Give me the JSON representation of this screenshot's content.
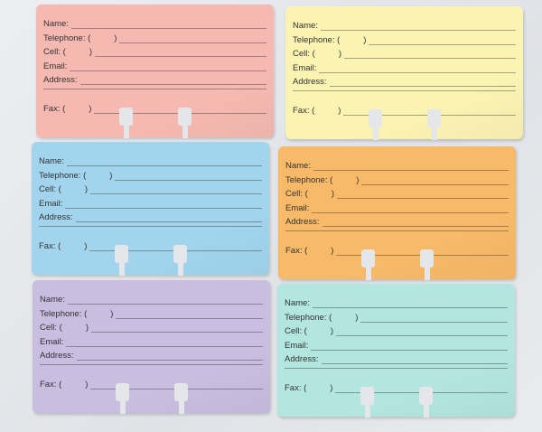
{
  "fields": {
    "name": "Name:",
    "telephone": "Telephone: (",
    "cell": "Cell: (",
    "email": "Email:",
    "address": "Address:",
    "fax": "Fax: (",
    "close_paren": ")"
  },
  "cards": [
    {
      "color": "#f5b9b1"
    },
    {
      "color": "#fbf3b2"
    },
    {
      "color": "#a2d4ee"
    },
    {
      "color": "#f8b968"
    },
    {
      "color": "#c9bde0"
    },
    {
      "color": "#b2e6df"
    }
  ]
}
